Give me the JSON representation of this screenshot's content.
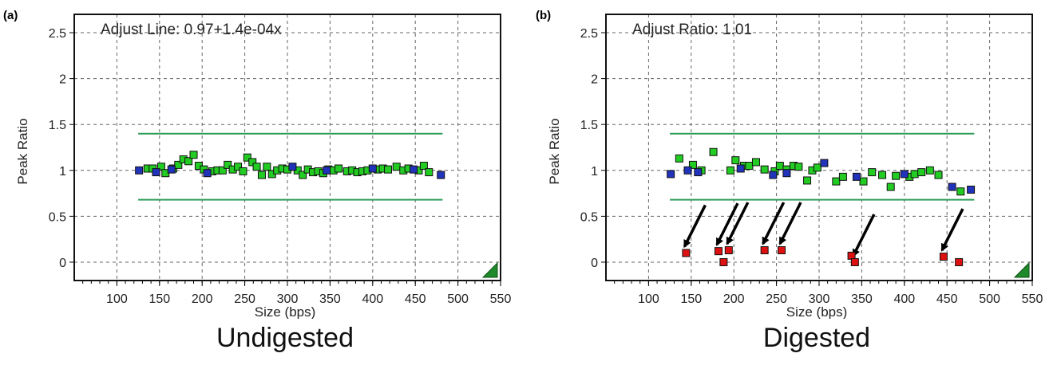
{
  "colors": {
    "threshold_line": "#2e9e5a",
    "point_green": "#22cc22",
    "point_blue": "#2233bb",
    "point_red": "#dd1111",
    "corner_marker": "#1e8a2a",
    "grid": "#666666"
  },
  "chart_data": [
    {
      "type": "scatter",
      "panel_label": "(a)",
      "title": "Adjust Line: 0.97+1.4e-04x",
      "xlabel": "Size (bps)",
      "ylabel": "Peak Ratio",
      "caption": "Undigested",
      "xlim": [
        50,
        550
      ],
      "ylim": [
        -0.2,
        2.7
      ],
      "xticks": [
        100,
        150,
        200,
        250,
        300,
        350,
        400,
        450,
        500,
        550
      ],
      "yticks": [
        0,
        0.5,
        1,
        1.5,
        2,
        2.5
      ],
      "grid": true,
      "thresholds": [
        1.4,
        0.68
      ],
      "series": [
        {
          "color": "green",
          "points": [
            [
              136,
              1.02
            ],
            [
              142,
              1.02
            ],
            [
              152,
              1.04
            ],
            [
              157,
              0.97
            ],
            [
              166,
              1.02
            ],
            [
              172,
              1.06
            ],
            [
              178,
              1.12
            ],
            [
              184,
              1.1
            ],
            [
              190,
              1.17
            ],
            [
              196,
              1.05
            ],
            [
              202,
              1.01
            ],
            [
              212,
              0.99
            ],
            [
              218,
              1.0
            ],
            [
              224,
              1.0
            ],
            [
              230,
              1.06
            ],
            [
              236,
              1.01
            ],
            [
              242,
              1.04
            ],
            [
              248,
              0.99
            ],
            [
              253,
              1.14
            ],
            [
              259,
              1.09
            ],
            [
              264,
              1.04
            ],
            [
              270,
              0.95
            ],
            [
              276,
              1.04
            ],
            [
              282,
              0.96
            ],
            [
              288,
              1.0
            ],
            [
              294,
              1.02
            ],
            [
              300,
              1.01
            ],
            [
              312,
              1.0
            ],
            [
              318,
              0.95
            ],
            [
              324,
              1.01
            ],
            [
              330,
              0.98
            ],
            [
              336,
              0.99
            ],
            [
              342,
              0.97
            ],
            [
              348,
              1.01
            ],
            [
              354,
              1.0
            ],
            [
              360,
              1.02
            ],
            [
              370,
              0.99
            ],
            [
              376,
              1.0
            ],
            [
              382,
              0.98
            ],
            [
              388,
              0.99
            ],
            [
              394,
              1.0
            ],
            [
              406,
              1.01
            ],
            [
              412,
              1.02
            ],
            [
              418,
              1.01
            ],
            [
              428,
              1.04
            ],
            [
              436,
              1.0
            ],
            [
              442,
              1.02
            ],
            [
              454,
              1.0
            ],
            [
              460,
              1.05
            ],
            [
              466,
              0.98
            ]
          ]
        },
        {
          "color": "blue",
          "points": [
            [
              126,
              1.0
            ],
            [
              146,
              0.98
            ],
            [
              164,
              1.01
            ],
            [
              206,
              0.97
            ],
            [
              306,
              1.04
            ],
            [
              346,
              1.0
            ],
            [
              400,
              1.02
            ],
            [
              448,
              1.01
            ],
            [
              480,
              0.95
            ]
          ]
        }
      ]
    },
    {
      "type": "scatter",
      "panel_label": "(b)",
      "title": "Adjust Ratio: 1.01",
      "xlabel": "Size (bps)",
      "ylabel": "Peak Ratio",
      "caption": "Digested",
      "xlim": [
        50,
        550
      ],
      "ylim": [
        -0.2,
        2.7
      ],
      "xticks": [
        100,
        150,
        200,
        250,
        300,
        350,
        400,
        450,
        500,
        550
      ],
      "yticks": [
        0,
        0.5,
        1,
        1.5,
        2,
        2.5
      ],
      "grid": true,
      "thresholds": [
        1.4,
        0.68
      ],
      "series": [
        {
          "color": "green",
          "points": [
            [
              136,
              1.13
            ],
            [
              152,
              1.06
            ],
            [
              162,
              1.0
            ],
            [
              176,
              1.2
            ],
            [
              196,
              1.0
            ],
            [
              202,
              1.11
            ],
            [
              212,
              1.05
            ],
            [
              218,
              1.05
            ],
            [
              226,
              1.09
            ],
            [
              236,
              1.01
            ],
            [
              248,
              0.99
            ],
            [
              254,
              1.05
            ],
            [
              262,
              1.01
            ],
            [
              270,
              1.05
            ],
            [
              276,
              1.04
            ],
            [
              286,
              0.89
            ],
            [
              292,
              1.0
            ],
            [
              298,
              1.03
            ],
            [
              320,
              0.88
            ],
            [
              328,
              0.93
            ],
            [
              352,
              0.88
            ],
            [
              362,
              0.98
            ],
            [
              374,
              0.95
            ],
            [
              384,
              0.82
            ],
            [
              390,
              0.94
            ],
            [
              406,
              0.93
            ],
            [
              412,
              0.96
            ],
            [
              420,
              0.98
            ],
            [
              430,
              1.0
            ],
            [
              440,
              0.95
            ],
            [
              466,
              0.77
            ]
          ]
        },
        {
          "color": "blue",
          "points": [
            [
              126,
              0.96
            ],
            [
              146,
              1.0
            ],
            [
              158,
              0.98
            ],
            [
              208,
              1.02
            ],
            [
              246,
              0.95
            ],
            [
              262,
              0.97
            ],
            [
              306,
              1.08
            ],
            [
              344,
              0.93
            ],
            [
              400,
              0.96
            ],
            [
              456,
              0.82
            ],
            [
              478,
              0.79
            ]
          ]
        },
        {
          "color": "red",
          "points": [
            [
              144,
              0.1
            ],
            [
              182,
              0.12
            ],
            [
              188,
              0.0
            ],
            [
              194,
              0.13
            ],
            [
              236,
              0.13
            ],
            [
              256,
              0.13
            ],
            [
              338,
              0.07
            ],
            [
              342,
              0.0
            ],
            [
              446,
              0.06
            ],
            [
              464,
              0.0
            ]
          ]
        }
      ],
      "arrows": [
        [
          144,
          0.1
        ],
        [
          182,
          0.12
        ],
        [
          194,
          0.13
        ],
        [
          236,
          0.13
        ],
        [
          256,
          0.13
        ],
        [
          342,
          0.0
        ],
        [
          446,
          0.06
        ]
      ]
    }
  ]
}
